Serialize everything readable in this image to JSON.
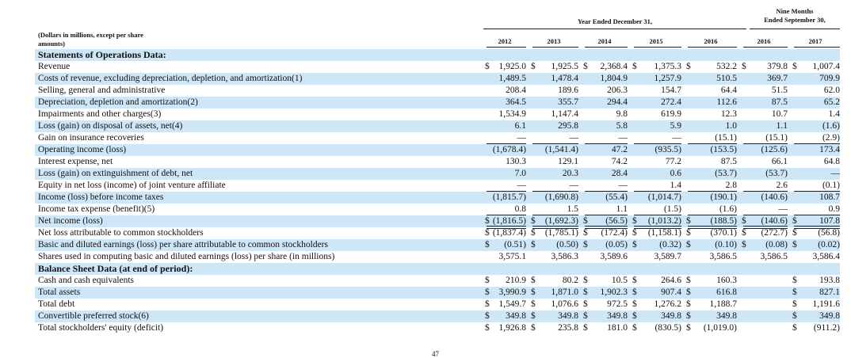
{
  "header": {
    "units_note_line1": "(Dollars in millions, except per share",
    "units_note_line2": "amounts)",
    "group1_title": "Year Ended December 31,",
    "group2_title_line1": "Nine Months",
    "group2_title_line2": "Ended September 30,",
    "columns": [
      "2012",
      "2013",
      "2014",
      "2015",
      "2016",
      "2016",
      "2017"
    ]
  },
  "rows": [
    {
      "label": "Statements of Operations Data:",
      "section": true
    },
    {
      "label": "Revenue",
      "cells": [
        [
          "$",
          "1,925.0"
        ],
        [
          "$",
          "1,925.5"
        ],
        [
          "$",
          "2,368.4"
        ],
        [
          "$",
          "1,375.3"
        ],
        [
          "$",
          "532.2"
        ],
        [
          "$",
          "379.8"
        ],
        [
          "$",
          "1,007.4"
        ]
      ]
    },
    {
      "label": "Costs of revenue, excluding depreciation, depletion, and amortization(1)",
      "cells": [
        [
          "",
          "1,489.5"
        ],
        [
          "",
          "1,478.4"
        ],
        [
          "",
          "1,804.9"
        ],
        [
          "",
          "1,257.9"
        ],
        [
          "",
          "510.5"
        ],
        [
          "",
          "369.7"
        ],
        [
          "",
          "709.9"
        ]
      ]
    },
    {
      "label": "Selling, general and administrative",
      "cells": [
        [
          "",
          "208.4"
        ],
        [
          "",
          "189.6"
        ],
        [
          "",
          "206.3"
        ],
        [
          "",
          "154.7"
        ],
        [
          "",
          "64.4"
        ],
        [
          "",
          "51.5"
        ],
        [
          "",
          "62.0"
        ]
      ]
    },
    {
      "label": "Depreciation, depletion and amortization(2)",
      "cells": [
        [
          "",
          "364.5"
        ],
        [
          "",
          "355.7"
        ],
        [
          "",
          "294.4"
        ],
        [
          "",
          "272.4"
        ],
        [
          "",
          "112.6"
        ],
        [
          "",
          "87.5"
        ],
        [
          "",
          "65.2"
        ]
      ]
    },
    {
      "label": "Impairments and other charges(3)",
      "cells": [
        [
          "",
          "1,534.9"
        ],
        [
          "",
          "1,147.4"
        ],
        [
          "",
          "9.8"
        ],
        [
          "",
          "619.9"
        ],
        [
          "",
          "12.3"
        ],
        [
          "",
          "10.7"
        ],
        [
          "",
          "1.4"
        ]
      ]
    },
    {
      "label": "Loss (gain) on disposal of assets, net(4)",
      "cells": [
        [
          "",
          "6.1"
        ],
        [
          "",
          "295.8"
        ],
        [
          "",
          "5.8"
        ],
        [
          "",
          "5.9"
        ],
        [
          "",
          "1.0"
        ],
        [
          "",
          "1.1"
        ],
        [
          "",
          "(1.6)"
        ]
      ]
    },
    {
      "label": "Gain on insurance recoveries",
      "cells": [
        [
          "",
          "—"
        ],
        [
          "",
          "—"
        ],
        [
          "",
          "—"
        ],
        [
          "",
          "—"
        ],
        [
          "",
          "(15.1)"
        ],
        [
          "",
          "(15.1)"
        ],
        [
          "",
          "(2.9)"
        ]
      ],
      "underline": true
    },
    {
      "label": "Operating income (loss)",
      "cells": [
        [
          "",
          "(1,678.4)"
        ],
        [
          "",
          "(1,541.4)"
        ],
        [
          "",
          "47.2"
        ],
        [
          "",
          "(935.5)"
        ],
        [
          "",
          "(153.5)"
        ],
        [
          "",
          "(125.6)"
        ],
        [
          "",
          "173.4"
        ]
      ]
    },
    {
      "label": "Interest expense, net",
      "cells": [
        [
          "",
          "130.3"
        ],
        [
          "",
          "129.1"
        ],
        [
          "",
          "74.2"
        ],
        [
          "",
          "77.2"
        ],
        [
          "",
          "87.5"
        ],
        [
          "",
          "66.1"
        ],
        [
          "",
          "64.8"
        ]
      ]
    },
    {
      "label": "Loss (gain) on extinguishment of debt, net",
      "cells": [
        [
          "",
          "7.0"
        ],
        [
          "",
          "20.3"
        ],
        [
          "",
          "28.4"
        ],
        [
          "",
          "0.6"
        ],
        [
          "",
          "(53.7)"
        ],
        [
          "",
          "(53.7)"
        ],
        [
          "",
          "—"
        ]
      ]
    },
    {
      "label": "Equity in net loss (income) of joint venture affiliate",
      "cells": [
        [
          "",
          "—"
        ],
        [
          "",
          "—"
        ],
        [
          "",
          "—"
        ],
        [
          "",
          "1.4"
        ],
        [
          "",
          "2.8"
        ],
        [
          "",
          "2.6"
        ],
        [
          "",
          "(0.1)"
        ]
      ],
      "underline": true
    },
    {
      "label": "Income (loss) before income taxes",
      "cells": [
        [
          "",
          "(1,815.7)"
        ],
        [
          "",
          "(1,690.8)"
        ],
        [
          "",
          "(55.4)"
        ],
        [
          "",
          "(1,014.7)"
        ],
        [
          "",
          "(190.1)"
        ],
        [
          "",
          "(140.6)"
        ],
        [
          "",
          "108.7"
        ]
      ]
    },
    {
      "label": "Income tax expense (benefit)(5)",
      "cells": [
        [
          "",
          "0.8"
        ],
        [
          "",
          "1.5"
        ],
        [
          "",
          "1.1"
        ],
        [
          "",
          "(1.5)"
        ],
        [
          "",
          "(1.6)"
        ],
        [
          "",
          "—"
        ],
        [
          "",
          "0.9"
        ]
      ],
      "underline": true
    },
    {
      "label": "Net income (loss)",
      "cells": [
        [
          "$",
          "(1,816.5)"
        ],
        [
          "$",
          "(1,692.3)"
        ],
        [
          "$",
          "(56.5)"
        ],
        [
          "$",
          "(1,013.2)"
        ],
        [
          "$",
          "(188.5)"
        ],
        [
          "$",
          "(140.6)"
        ],
        [
          "$",
          "107.8"
        ]
      ],
      "double": true
    },
    {
      "label": "Net loss attributable to common stockholders",
      "cells": [
        [
          "$",
          "(1,837.4)"
        ],
        [
          "$",
          "(1,785.1)"
        ],
        [
          "$",
          "(172.4)"
        ],
        [
          "$",
          "(1,158.1)"
        ],
        [
          "$",
          "(370.1)"
        ],
        [
          "$",
          "(272.7)"
        ],
        [
          "$",
          "(56.8)"
        ]
      ]
    },
    {
      "label": "Basic and diluted earnings (loss) per share attributable to common stockholders",
      "cells": [
        [
          "$",
          "(0.51)"
        ],
        [
          "$",
          "(0.50)"
        ],
        [
          "$",
          "(0.05)"
        ],
        [
          "$",
          "(0.32)"
        ],
        [
          "$",
          "(0.10)"
        ],
        [
          "$",
          "(0.08)"
        ],
        [
          "$",
          "(0.02)"
        ]
      ]
    },
    {
      "label": "Shares used in computing basic and diluted earnings (loss) per share (in millions)",
      "cells": [
        [
          "",
          "3,575.1"
        ],
        [
          "",
          "3,586.3"
        ],
        [
          "",
          "3,589.6"
        ],
        [
          "",
          "3,589.7"
        ],
        [
          "",
          "3,586.5"
        ],
        [
          "",
          "3,586.5"
        ],
        [
          "",
          "3,586.4"
        ]
      ]
    },
    {
      "label": "Balance Sheet Data (at end of period):",
      "section": true
    },
    {
      "label": "Cash and cash equivalents",
      "cells": [
        [
          "$",
          "210.9"
        ],
        [
          "$",
          "80.2"
        ],
        [
          "$",
          "10.5"
        ],
        [
          "$",
          "264.6"
        ],
        [
          "$",
          "160.3"
        ],
        [
          "",
          ""
        ],
        [
          "$",
          "193.8"
        ]
      ]
    },
    {
      "label": "Total assets",
      "cells": [
        [
          "$",
          "3,990.9"
        ],
        [
          "$",
          "1,871.0"
        ],
        [
          "$",
          "1,902.3"
        ],
        [
          "$",
          "907.4"
        ],
        [
          "$",
          "616.8"
        ],
        [
          "",
          ""
        ],
        [
          "$",
          "827.1"
        ]
      ]
    },
    {
      "label": "Total debt",
      "cells": [
        [
          "$",
          "1,549.7"
        ],
        [
          "$",
          "1,076.6"
        ],
        [
          "$",
          "972.5"
        ],
        [
          "$",
          "1,276.2"
        ],
        [
          "$",
          "1,188.7"
        ],
        [
          "",
          ""
        ],
        [
          "$",
          "1,191.6"
        ]
      ]
    },
    {
      "label": "Convertible preferred stock(6)",
      "cells": [
        [
          "$",
          "349.8"
        ],
        [
          "$",
          "349.8"
        ],
        [
          "$",
          "349.8"
        ],
        [
          "$",
          "349.8"
        ],
        [
          "$",
          "349.8"
        ],
        [
          "",
          ""
        ],
        [
          "$",
          "349.8"
        ]
      ]
    },
    {
      "label": "Total stockholders' equity (deficit)",
      "cells": [
        [
          "$",
          "1,926.8"
        ],
        [
          "$",
          "235.8"
        ],
        [
          "$",
          "181.0"
        ],
        [
          "$",
          "(830.5)"
        ],
        [
          "$",
          "(1,019.0)"
        ],
        [
          "",
          ""
        ],
        [
          "$",
          "(911.2)"
        ]
      ]
    }
  ],
  "footer": {
    "page_number": "47"
  },
  "colors": {
    "row_shade": "#cfe6f6",
    "text": "#111111"
  }
}
